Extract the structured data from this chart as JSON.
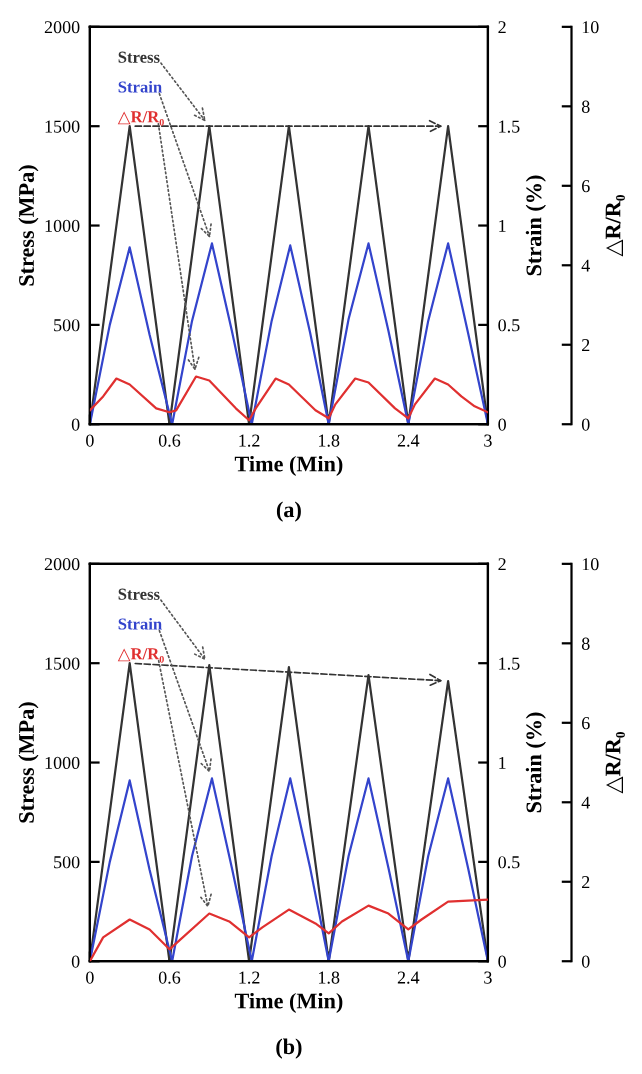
{
  "chart_data": [
    {
      "type": "line",
      "xlabel": "Time (Min)",
      "ylabel": "Stress (MPa)",
      "y2label": "Strain (%)",
      "y3label": "△R/R₀",
      "annotations": [
        "(a)"
      ],
      "xlim": [
        0,
        3
      ],
      "xticks": [
        0,
        0.6,
        1.2,
        1.8,
        2.4,
        3
      ],
      "ylim": [
        0,
        2000
      ],
      "yticks": [
        0,
        500,
        1000,
        1500,
        2000
      ],
      "y2lim": [
        0,
        2
      ],
      "y2ticks": [
        0,
        0.5,
        1,
        1.5,
        2
      ],
      "y3lim": [
        0,
        10
      ],
      "y3ticks": [
        0,
        2,
        4,
        6,
        8,
        10
      ],
      "grid": false,
      "legend": false,
      "line_style": "solid",
      "marker": "none",
      "series": [
        {
          "name": "Stress",
          "color": "#333333",
          "x": [
            0,
            0.3,
            0.6,
            0.9,
            1.2,
            1.5,
            1.8,
            2.1,
            2.4,
            2.7,
            3
          ],
          "values": [
            0,
            1500,
            0,
            1500,
            0,
            1500,
            0,
            1500,
            0,
            1500,
            0
          ]
        },
        {
          "name": "Strain",
          "color": "#3344cc",
          "axis": "y2",
          "x": [
            0,
            0.15,
            0.3,
            0.45,
            0.62,
            0.77,
            0.92,
            1.07,
            1.22,
            1.37,
            1.51,
            1.66,
            1.8,
            1.95,
            2.1,
            2.25,
            2.4,
            2.55,
            2.7,
            2.85,
            3
          ],
          "values": [
            0,
            0.5,
            0.89,
            0.45,
            0,
            0.52,
            0.91,
            0.47,
            0,
            0.52,
            0.9,
            0.46,
            0,
            0.53,
            0.91,
            0.47,
            0,
            0.52,
            0.91,
            0.46,
            0
          ]
        },
        {
          "name": "△R/R₀",
          "color": "#e03030",
          "axis": "y3",
          "x": [
            0,
            0.1,
            0.2,
            0.3,
            0.5,
            0.6,
            0.65,
            0.8,
            0.9,
            1.1,
            1.2,
            1.25,
            1.4,
            1.5,
            1.7,
            1.8,
            1.85,
            2.0,
            2.1,
            2.3,
            2.4,
            2.45,
            2.6,
            2.7,
            2.8,
            2.9,
            3.0
          ],
          "values": [
            0.35,
            0.7,
            1.15,
            1.0,
            0.4,
            0.3,
            0.35,
            1.2,
            1.1,
            0.4,
            0.1,
            0.4,
            1.15,
            1.0,
            0.35,
            0.15,
            0.5,
            1.15,
            1.05,
            0.4,
            0.15,
            0.5,
            1.15,
            1.0,
            0.7,
            0.45,
            0.3
          ]
        }
      ]
    },
    {
      "type": "line",
      "xlabel": "Time (Min)",
      "ylabel": "Stress (MPa)",
      "y2label": "Strain (%)",
      "y3label": "△R/R₀",
      "annotations": [
        "(b)"
      ],
      "xlim": [
        0,
        3
      ],
      "xticks": [
        0,
        0.6,
        1.2,
        1.8,
        2.4,
        3
      ],
      "ylim": [
        0,
        2000
      ],
      "yticks": [
        0,
        500,
        1000,
        1500,
        2000
      ],
      "y2lim": [
        0,
        2
      ],
      "y2ticks": [
        0,
        0.5,
        1,
        1.5,
        2
      ],
      "y3lim": [
        0,
        10
      ],
      "y3ticks": [
        0,
        2,
        4,
        6,
        8,
        10
      ],
      "grid": false,
      "legend": false,
      "line_style": "solid",
      "marker": "none",
      "series": [
        {
          "name": "Stress",
          "color": "#333333",
          "x": [
            0,
            0.3,
            0.6,
            0.9,
            1.2,
            1.5,
            1.8,
            2.1,
            2.4,
            2.7,
            3
          ],
          "values": [
            0,
            1500,
            0,
            1490,
            0,
            1480,
            0,
            1440,
            0,
            1410,
            0
          ]
        },
        {
          "name": "Strain",
          "color": "#3344cc",
          "axis": "y2",
          "x": [
            0,
            0.15,
            0.3,
            0.45,
            0.62,
            0.77,
            0.92,
            1.07,
            1.22,
            1.37,
            1.51,
            1.66,
            1.8,
            1.95,
            2.1,
            2.25,
            2.4,
            2.55,
            2.7,
            2.85,
            3
          ],
          "values": [
            0,
            0.5,
            0.91,
            0.46,
            0,
            0.53,
            0.92,
            0.47,
            0,
            0.53,
            0.92,
            0.47,
            0,
            0.53,
            0.92,
            0.47,
            0,
            0.53,
            0.92,
            0.47,
            0
          ]
        },
        {
          "name": "△R/R₀",
          "color": "#e03030",
          "axis": "y3",
          "x": [
            0,
            0.1,
            0.3,
            0.45,
            0.6,
            0.65,
            0.9,
            1.05,
            1.2,
            1.3,
            1.5,
            1.7,
            1.8,
            1.9,
            2.1,
            2.25,
            2.4,
            2.5,
            2.7,
            3.0
          ],
          "values": [
            0,
            0.6,
            1.05,
            0.8,
            0.3,
            0.45,
            1.2,
            1.0,
            0.6,
            0.85,
            1.3,
            0.95,
            0.7,
            1.0,
            1.4,
            1.2,
            0.8,
            1.05,
            1.5,
            1.55
          ]
        }
      ]
    }
  ]
}
